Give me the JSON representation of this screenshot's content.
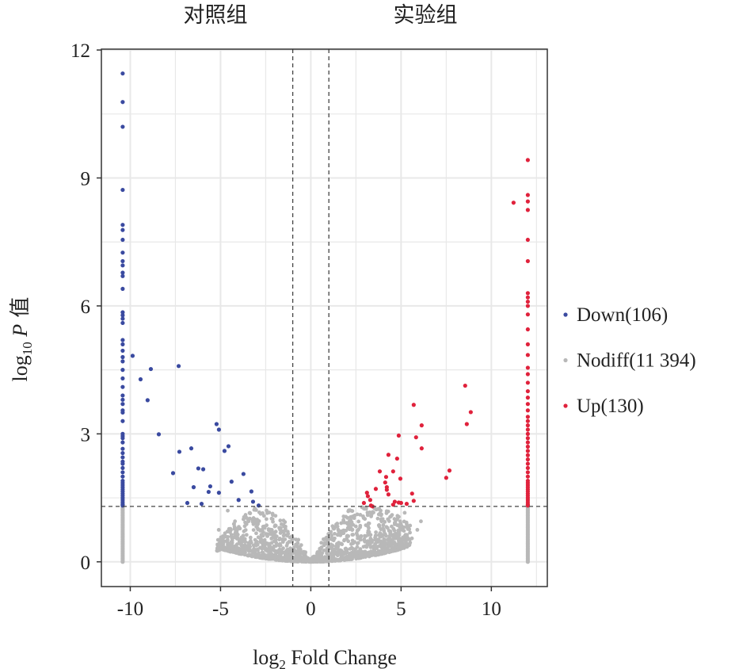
{
  "chart_data": {
    "type": "scatter",
    "title": "",
    "group_labels": {
      "left": "对照组",
      "right": "实验组"
    },
    "xlabel": {
      "prefix": "log",
      "sub": "2",
      "rest": " Fold Change"
    },
    "ylabel": {
      "prefix": "log",
      "sub": "10",
      "italic": " P",
      "rest": " 值"
    },
    "xlim": [
      -11.6,
      13.1
    ],
    "ylim": [
      -0.58,
      12.02
    ],
    "xticks": [
      -10,
      -5,
      0,
      5,
      10
    ],
    "xtick_labels": [
      "-10",
      "-5",
      "0",
      "5",
      "10"
    ],
    "yticks": [
      0,
      3,
      6,
      9,
      12
    ],
    "ytick_labels": [
      "0",
      "3",
      "6",
      "9",
      "12"
    ],
    "grid": true,
    "thresholds": {
      "x": [
        -1,
        1
      ],
      "y": 1.3
    },
    "legend": {
      "placement": "right",
      "entries": [
        {
          "label": "Down(106)",
          "color": "#3a4aa0"
        },
        {
          "label": "Nodiff(11 394)",
          "color": "#b8b8b8"
        },
        {
          "label": "Up(130)",
          "color": "#e0223c"
        }
      ]
    },
    "series": [
      {
        "name": "Down",
        "count": 106,
        "color": "#3a4aa0",
        "column_x": -10.42,
        "column_y": [
          11.45,
          10.78,
          10.2,
          8.72,
          7.9,
          7.78,
          7.55,
          7.25,
          7.05,
          6.95,
          6.78,
          6.7,
          6.4,
          5.85,
          5.78,
          5.7,
          5.6,
          5.2,
          5.1,
          4.95,
          4.8,
          4.7,
          4.5,
          4.3,
          4.1,
          3.9,
          3.8,
          3.7,
          3.55,
          3.5,
          3.3,
          3.0,
          2.95,
          2.9,
          2.8,
          2.65,
          2.55,
          2.45,
          2.35,
          2.3,
          2.2,
          2.1,
          2.0,
          1.9,
          1.85,
          1.8,
          1.75,
          1.7,
          1.65,
          1.6,
          1.55,
          1.5,
          1.45,
          1.4,
          1.35,
          1.32
        ],
        "points": [
          [
            -9.87,
            4.83
          ],
          [
            -9.43,
            4.28
          ],
          [
            -8.86,
            4.52
          ],
          [
            -9.04,
            3.79
          ],
          [
            -8.42,
            2.99
          ],
          [
            -7.32,
            4.59
          ],
          [
            -7.63,
            2.08
          ],
          [
            -7.28,
            2.58
          ],
          [
            -6.84,
            1.38
          ],
          [
            -6.49,
            1.75
          ],
          [
            -6.62,
            2.66
          ],
          [
            -6.23,
            2.19
          ],
          [
            -5.96,
            2.17
          ],
          [
            -6.05,
            1.36
          ],
          [
            -5.66,
            1.64
          ],
          [
            -5.57,
            1.77
          ],
          [
            -5.22,
            3.23
          ],
          [
            -5.09,
            3.1
          ],
          [
            -5.09,
            1.62
          ],
          [
            -4.78,
            2.6
          ],
          [
            -4.56,
            2.71
          ],
          [
            -4.39,
            1.88
          ],
          [
            -3.73,
            2.06
          ],
          [
            -4.0,
            1.45
          ],
          [
            -3.29,
            1.65
          ],
          [
            -3.2,
            1.41
          ],
          [
            -2.89,
            1.32
          ]
        ]
      },
      {
        "name": "Nodiff",
        "count": 11394,
        "color": "#b8b8b8",
        "columns": [
          {
            "x": -10.42,
            "ymin": 0,
            "ymax": 1.3
          },
          {
            "x": 12.02,
            "ymin": 0,
            "ymax": 1.3
          }
        ],
        "envelope": {
          "x": [
            -5.2,
            -4,
            -3,
            -2,
            -1,
            0,
            1,
            2,
            3,
            4,
            5.5
          ],
          "ymax": [
            0.5,
            1.0,
            1.3,
            1.2,
            0.75,
            0.05,
            0.75,
            1.2,
            1.3,
            1.3,
            0.9
          ]
        },
        "outliers": [
          [
            -5.1,
            0.75
          ],
          [
            -4.6,
            1.2
          ],
          [
            -4.2,
            0.95
          ],
          [
            -3.7,
            1.05
          ],
          [
            -3.1,
            1.25
          ],
          [
            3.9,
            1.0
          ],
          [
            4.5,
            1.1
          ],
          [
            5.2,
            1.15
          ],
          [
            5.5,
            0.85
          ],
          [
            5.9,
            0.75
          ],
          [
            6.1,
            0.95
          ],
          [
            4.9,
            0.55
          ],
          [
            5.6,
            0.55
          ]
        ]
      },
      {
        "name": "Up",
        "count": 130,
        "color": "#e0223c",
        "column_x": 12.02,
        "column_y": [
          9.42,
          8.6,
          8.45,
          8.25,
          7.55,
          7.05,
          6.3,
          6.2,
          6.1,
          6.0,
          5.8,
          5.45,
          5.1,
          4.85,
          4.55,
          4.4,
          4.2,
          4.0,
          3.85,
          3.7,
          3.55,
          3.4,
          3.3,
          3.2,
          3.1,
          3.0,
          2.9,
          2.8,
          2.7,
          2.6,
          2.5,
          2.4,
          2.3,
          2.2,
          2.1,
          2.0,
          1.9,
          1.85,
          1.8,
          1.75,
          1.7,
          1.65,
          1.6,
          1.55,
          1.5,
          1.45,
          1.4,
          1.35,
          1.32
        ],
        "points": [
          [
            11.23,
            8.42
          ],
          [
            8.55,
            4.13
          ],
          [
            8.86,
            3.51
          ],
          [
            8.64,
            3.23
          ],
          [
            5.7,
            3.68
          ],
          [
            6.14,
            3.2
          ],
          [
            5.83,
            2.92
          ],
          [
            6.14,
            2.66
          ],
          [
            4.87,
            2.96
          ],
          [
            4.3,
            2.51
          ],
          [
            4.78,
            2.42
          ],
          [
            3.82,
            2.12
          ],
          [
            4.56,
            2.12
          ],
          [
            4.96,
            1.95
          ],
          [
            4.17,
            1.99
          ],
          [
            4.12,
            1.86
          ],
          [
            4.21,
            1.75
          ],
          [
            4.21,
            1.69
          ],
          [
            4.3,
            1.58
          ],
          [
            3.6,
            1.71
          ],
          [
            3.11,
            1.62
          ],
          [
            3.16,
            1.54
          ],
          [
            3.29,
            1.45
          ],
          [
            2.94,
            1.38
          ],
          [
            3.33,
            1.32
          ],
          [
            3.42,
            1.3
          ],
          [
            4.56,
            1.34
          ],
          [
            4.65,
            1.41
          ],
          [
            4.87,
            1.39
          ],
          [
            5.0,
            1.38
          ],
          [
            5.31,
            1.36
          ],
          [
            5.61,
            1.6
          ],
          [
            5.7,
            1.43
          ],
          [
            7.5,
            1.97
          ],
          [
            7.68,
            2.14
          ]
        ]
      }
    ]
  }
}
